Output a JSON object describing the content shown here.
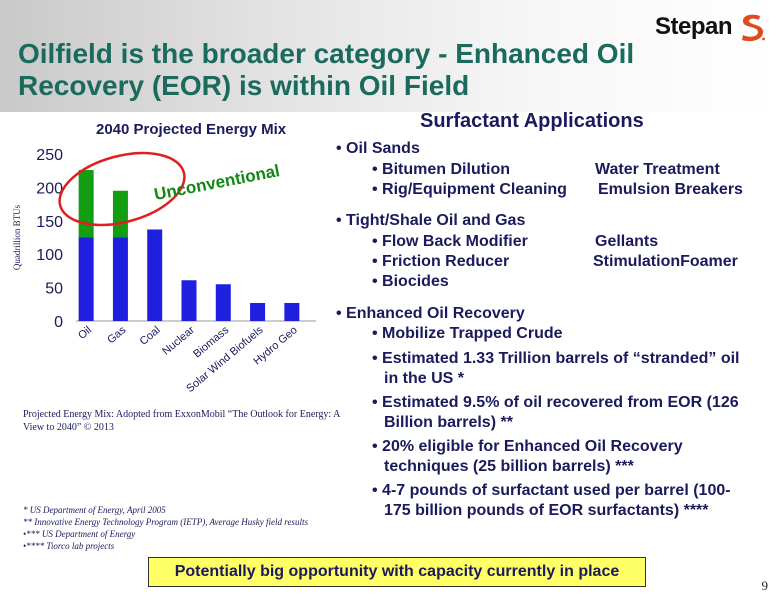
{
  "logo": {
    "text": "Stepan",
    "color": "#e04a1f"
  },
  "title": "Oilfield is the broader category - Enhanced Oil Recovery (EOR) is within Oil Field",
  "chart_data": {
    "type": "bar",
    "title": "2040 Projected Energy Mix",
    "ylabel": "Quadrillion BTUs",
    "xlabel": "",
    "ylim": [
      0,
      250
    ],
    "yticks": [
      0,
      50,
      100,
      150,
      200,
      250
    ],
    "categories": [
      "Oil",
      "Gas",
      "Coal",
      "Nuclear",
      "Biomass",
      "Solar Wind Biofuels",
      "Hydro Geo"
    ],
    "series": [
      {
        "values": [
          125,
          125,
          137,
          61,
          55,
          27,
          27
        ],
        "color": "#1f1fe0"
      },
      {
        "values": [
          101,
          70,
          0,
          0,
          0,
          0,
          0
        ],
        "color": "#129d12"
      }
    ],
    "annotation": {
      "text": "Unconventional",
      "color": "#118811",
      "ellipse_color": "#e02020"
    },
    "grid": false,
    "legend": "none"
  },
  "source_note": "Projected Energy Mix: Adopted from ExxonMobil “The Outlook for Energy:  A View to 2040” © 2013",
  "footnotes": [
    "* US Department of Energy, April 2005",
    "**  Innovative Energy Technology Program (IETP), Average Husky field results",
    "•*** US Department of Energy",
    "•**** Tiorco lab projects"
  ],
  "applications": {
    "title": "Surfactant Applications",
    "oil_sands": {
      "label": "Oil Sands",
      "items": [
        {
          "left": "Bitumen Dilution",
          "right": "Water Treatment"
        },
        {
          "left": "Rig/Equipment Cleaning",
          "right": "Emulsion Breakers"
        }
      ]
    },
    "tight_shale": {
      "label": "Tight/Shale Oil and Gas",
      "items": [
        {
          "left": "Flow Back Modifier",
          "right": "Gellants"
        },
        {
          "left": "Friction Reducer",
          "right": "StimulationFoamer"
        },
        {
          "left": "Biocides",
          "right": ""
        }
      ]
    },
    "eor": {
      "label": "Enhanced Oil Recovery",
      "items": [
        {
          "line1": "Mobilize Trapped Crude",
          "line2": ""
        },
        {
          "line1": "Estimated 1.33 Trillion barrels of “stranded” oil",
          "line2": "in the US *"
        },
        {
          "line1": "Estimated 9.5% of oil recovered from EOR (126",
          "line2": "Billion barrels) **"
        },
        {
          "line1": "20% eligible for Enhanced Oil Recovery",
          "line2": "techniques (25 billion barrels) ***"
        },
        {
          "line1": "4-7 pounds of surfactant used per barrel (100-",
          "line2": "175 billion pounds of EOR surfactants) ****"
        }
      ]
    }
  },
  "callout": "Potentially big opportunity with capacity currently in place",
  "page_number": "9"
}
